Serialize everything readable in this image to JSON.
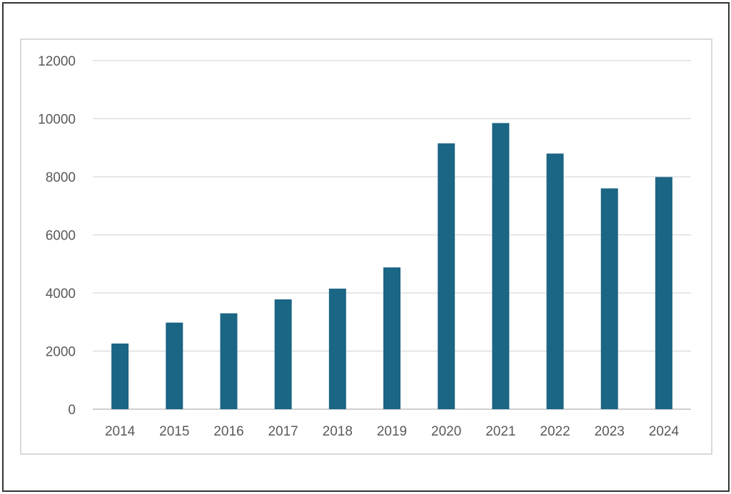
{
  "chart_data": {
    "type": "bar",
    "title": "",
    "xlabel": "",
    "ylabel": "",
    "categories": [
      "2014",
      "2015",
      "2016",
      "2017",
      "2018",
      "2019",
      "2020",
      "2021",
      "2022",
      "2023",
      "2024"
    ],
    "values": [
      2260,
      2980,
      3300,
      3780,
      4150,
      4880,
      9150,
      9850,
      8800,
      7600,
      7990
    ],
    "ylim": [
      0,
      12000
    ],
    "yticks": [
      "0",
      "2000",
      "4000",
      "6000",
      "8000",
      "10000",
      "12000"
    ],
    "grid": true,
    "legend": "none",
    "colors": {
      "bar": "#1b6585",
      "grid": "#d9d9d9",
      "axis": "#bfbfbf",
      "text": "#595959"
    }
  }
}
